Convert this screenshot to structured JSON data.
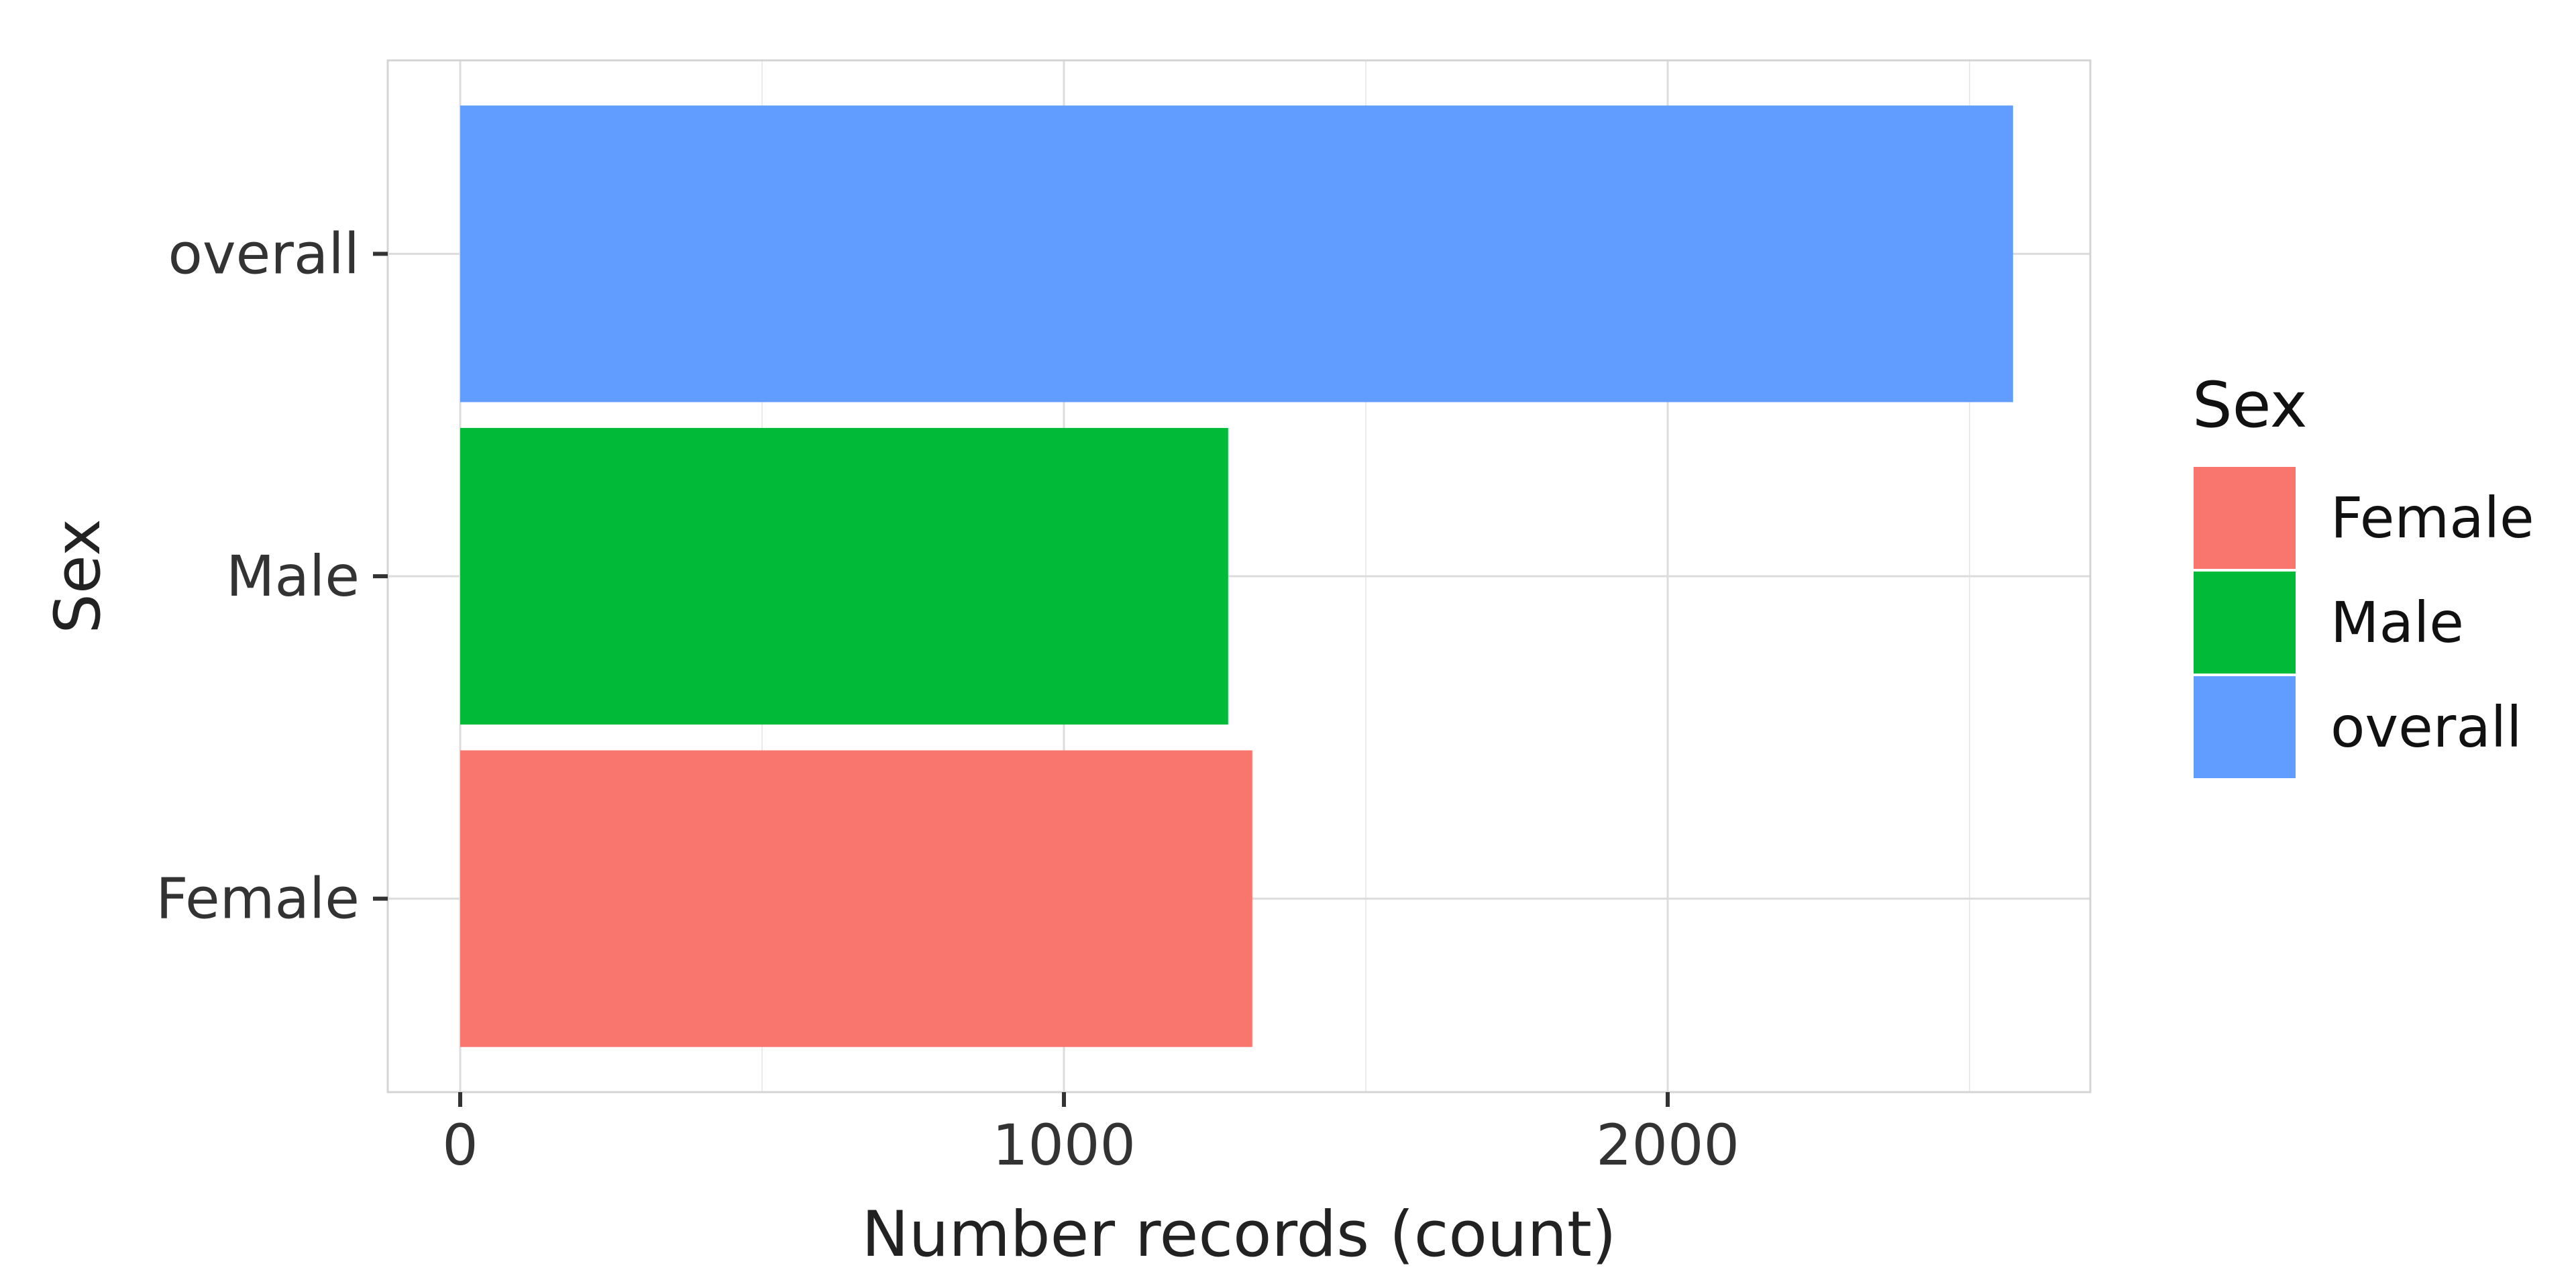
{
  "chart_data": {
    "type": "bar",
    "orientation": "horizontal",
    "title": "",
    "xlabel": "Number records (count)",
    "ylabel": "Sex",
    "xlim": [
      -120,
      2700
    ],
    "xticks": [
      0,
      1000,
      2000
    ],
    "grid": true,
    "categories": [
      "Female",
      "Male",
      "overall"
    ],
    "values": [
      1312,
      1272,
      2572
    ],
    "colors": {
      "Female": "#F8766D",
      "Male": "#00BA38",
      "overall": "#619CFF"
    },
    "legend": {
      "title": "Sex",
      "entries": [
        "Female",
        "Male",
        "overall"
      ],
      "placement": "right"
    }
  }
}
